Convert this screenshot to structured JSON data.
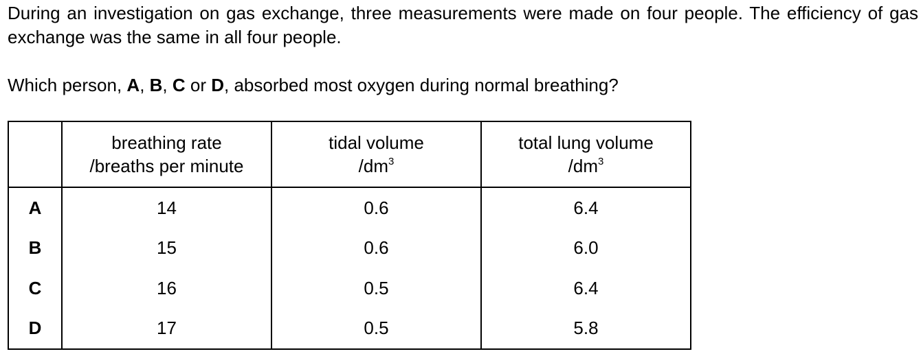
{
  "intro": "During an investigation on gas exchange, three measurements were made on four people. The efficiency of gas exchange was the same in all four people.",
  "question": {
    "prefix": "Which person, ",
    "opt_a": "A",
    "sep1": ", ",
    "opt_b": "B",
    "sep2": ", ",
    "opt_c": "C",
    "sep3": " or ",
    "opt_d": "D",
    "suffix": ", absorbed most oxygen during normal breathing?"
  },
  "table": {
    "headers": [
      {
        "line1": "breathing rate",
        "line2": "/breaths per minute",
        "sup": ""
      },
      {
        "line1": "tidal volume",
        "line2": "/dm",
        "sup": "3"
      },
      {
        "line1": "total lung volume",
        "line2": "/dm",
        "sup": "3"
      }
    ],
    "rows": [
      {
        "label": "A",
        "breathing_rate": "14",
        "tidal_volume": "0.6",
        "total_lung_volume": "6.4"
      },
      {
        "label": "B",
        "breathing_rate": "15",
        "tidal_volume": "0.6",
        "total_lung_volume": "6.0"
      },
      {
        "label": "C",
        "breathing_rate": "16",
        "tidal_volume": "0.5",
        "total_lung_volume": "6.4"
      },
      {
        "label": "D",
        "breathing_rate": "17",
        "tidal_volume": "0.5",
        "total_lung_volume": "5.8"
      }
    ]
  }
}
